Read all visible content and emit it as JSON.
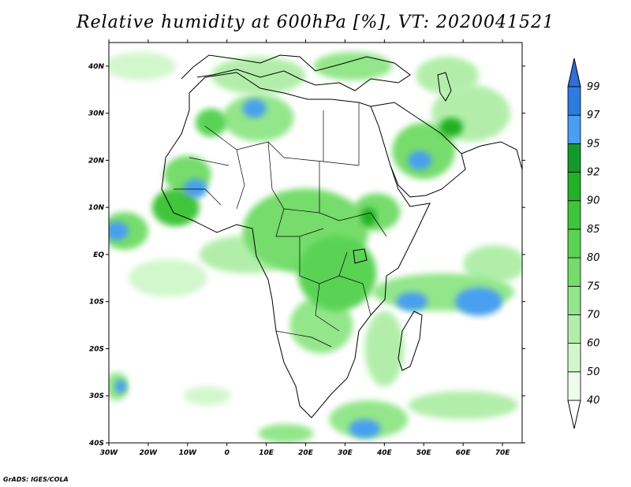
{
  "title": "Relative humidity at 600hPa [%], VT: 2020041521",
  "credit": "GrADS: IGES/COLA",
  "map": {
    "lon_range": [
      -30,
      75
    ],
    "lat_range": [
      -40,
      45
    ],
    "lon_ticks": [
      {
        "value": -30,
        "label": "30W"
      },
      {
        "value": -20,
        "label": "20W"
      },
      {
        "value": -10,
        "label": "10W"
      },
      {
        "value": 0,
        "label": "0"
      },
      {
        "value": 10,
        "label": "10E"
      },
      {
        "value": 20,
        "label": "20E"
      },
      {
        "value": 30,
        "label": "30E"
      },
      {
        "value": 40,
        "label": "40E"
      },
      {
        "value": 50,
        "label": "50E"
      },
      {
        "value": 60,
        "label": "60E"
      },
      {
        "value": 70,
        "label": "70E"
      }
    ],
    "lat_ticks": [
      {
        "value": 40,
        "label": "40N"
      },
      {
        "value": 30,
        "label": "30N"
      },
      {
        "value": 20,
        "label": "20N"
      },
      {
        "value": 10,
        "label": "10N"
      },
      {
        "value": 0,
        "label": "EQ"
      },
      {
        "value": -10,
        "label": "10S"
      },
      {
        "value": -20,
        "label": "20S"
      },
      {
        "value": -30,
        "label": "30S"
      },
      {
        "value": -40,
        "label": "40S"
      }
    ]
  },
  "colorbar": {
    "levels": [
      "40",
      "50",
      "60",
      "70",
      "75",
      "80",
      "85",
      "90",
      "92",
      "95",
      "97",
      "99"
    ],
    "colors": [
      "#eefcec",
      "#d2f7cc",
      "#b2eeaa",
      "#93e68a",
      "#76dc6c",
      "#5ad354",
      "#3fc53b",
      "#22b024",
      "#15982b",
      "#4a9ff0",
      "#2c7ce0"
    ],
    "upper_triangle_color": "#2f6fd6",
    "lower_triangle_color": "#ffffff"
  },
  "field_regions": [
    {
      "lon": -22,
      "lat": 40,
      "rx": 9,
      "ry": 3,
      "level": 1
    },
    {
      "lon": 8,
      "lat": 38,
      "rx": 12,
      "ry": 4,
      "level": 2
    },
    {
      "lon": 32,
      "lat": 40,
      "rx": 10,
      "ry": 3,
      "level": 3
    },
    {
      "lon": 56,
      "lat": 38,
      "rx": 8,
      "ry": 4,
      "level": 2
    },
    {
      "lon": 62,
      "lat": 30,
      "rx": 10,
      "ry": 6,
      "level": 2
    },
    {
      "lon": 8,
      "lat": 29,
      "rx": 9,
      "ry": 5,
      "level": 3
    },
    {
      "lon": 7,
      "lat": 31,
      "rx": 3,
      "ry": 2,
      "level": 9
    },
    {
      "lon": -4,
      "lat": 28,
      "rx": 4,
      "ry": 3,
      "level": 5
    },
    {
      "lon": 50,
      "lat": 22,
      "rx": 8,
      "ry": 6,
      "level": 4
    },
    {
      "lon": 49,
      "lat": 20,
      "rx": 3,
      "ry": 2,
      "level": 9
    },
    {
      "lon": 57,
      "lat": 27,
      "rx": 3,
      "ry": 2,
      "level": 7
    },
    {
      "lon": -10,
      "lat": 17,
      "rx": 6,
      "ry": 4,
      "level": 4
    },
    {
      "lon": -13,
      "lat": 10,
      "rx": 6,
      "ry": 4,
      "level": 6
    },
    {
      "lon": -8,
      "lat": 14,
      "rx": 3,
      "ry": 2,
      "level": 9
    },
    {
      "lon": -26,
      "lat": 5,
      "rx": 6,
      "ry": 4,
      "level": 4
    },
    {
      "lon": -28,
      "lat": 5,
      "rx": 3,
      "ry": 2,
      "level": 9
    },
    {
      "lon": 20,
      "lat": 5,
      "rx": 16,
      "ry": 9,
      "level": 4
    },
    {
      "lon": 28,
      "lat": -4,
      "rx": 10,
      "ry": 8,
      "level": 5
    },
    {
      "lon": 38,
      "lat": 9,
      "rx": 6,
      "ry": 4,
      "level": 4
    },
    {
      "lon": 36,
      "lat": 8,
      "rx": 2,
      "ry": 2,
      "level": 7
    },
    {
      "lon": 24,
      "lat": -15,
      "rx": 8,
      "ry": 6,
      "level": 3
    },
    {
      "lon": 5,
      "lat": 0,
      "rx": 12,
      "ry": 4,
      "level": 2
    },
    {
      "lon": -15,
      "lat": -5,
      "rx": 10,
      "ry": 4,
      "level": 1
    },
    {
      "lon": 55,
      "lat": -8,
      "rx": 18,
      "ry": 4,
      "level": 3
    },
    {
      "lon": 64,
      "lat": -10,
      "rx": 6,
      "ry": 3,
      "level": 9
    },
    {
      "lon": 47,
      "lat": -10,
      "rx": 4,
      "ry": 2,
      "level": 9
    },
    {
      "lon": 68,
      "lat": -2,
      "rx": 8,
      "ry": 4,
      "level": 2
    },
    {
      "lon": 40,
      "lat": -20,
      "rx": 5,
      "ry": 8,
      "level": 2
    },
    {
      "lon": 36,
      "lat": -35,
      "rx": 10,
      "ry": 4,
      "level": 3
    },
    {
      "lon": 35,
      "lat": -37,
      "rx": 4,
      "ry": 2,
      "level": 9
    },
    {
      "lon": 60,
      "lat": -32,
      "rx": 14,
      "ry": 3,
      "level": 2
    },
    {
      "lon": -28,
      "lat": -28,
      "rx": 3,
      "ry": 3,
      "level": 3
    },
    {
      "lon": -27,
      "lat": -28,
      "rx": 1.5,
      "ry": 1.5,
      "level": 9
    },
    {
      "lon": -5,
      "lat": -30,
      "rx": 6,
      "ry": 2,
      "level": 1
    },
    {
      "lon": 15,
      "lat": -38,
      "rx": 7,
      "ry": 2,
      "level": 3
    }
  ]
}
